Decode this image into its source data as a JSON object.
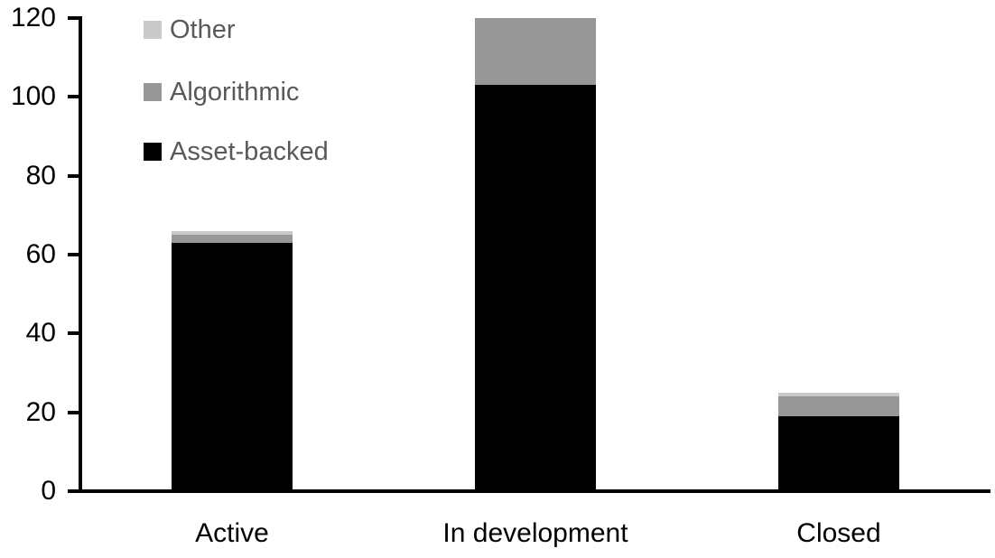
{
  "chart_data": {
    "type": "bar",
    "stacked": true,
    "categories": [
      "Active",
      "In development",
      "Closed"
    ],
    "series": [
      {
        "name": "Asset-backed",
        "color": "#000000",
        "values": [
          63,
          103,
          19
        ]
      },
      {
        "name": "Algorithmic",
        "color": "#979797",
        "values": [
          2,
          17,
          5
        ]
      },
      {
        "name": "Other",
        "color": "#C9C9C9",
        "values": [
          1,
          0,
          1
        ]
      }
    ],
    "totals": [
      66,
      120,
      25
    ],
    "xlabel": "",
    "ylabel": "",
    "ylim": [
      0,
      120
    ],
    "ytick_step": 20,
    "ytick_labels": [
      "0",
      "20",
      "40",
      "60",
      "80",
      "100",
      "120"
    ],
    "grid": false,
    "legend_position": "top-left",
    "legend_order": [
      "Other",
      "Algorithmic",
      "Asset-backed"
    ],
    "colors": {
      "axis": "#000000",
      "tick_label": "#000000",
      "category_label": "#000000",
      "legend_text": "#595959",
      "background": "#FFFFFF"
    }
  }
}
